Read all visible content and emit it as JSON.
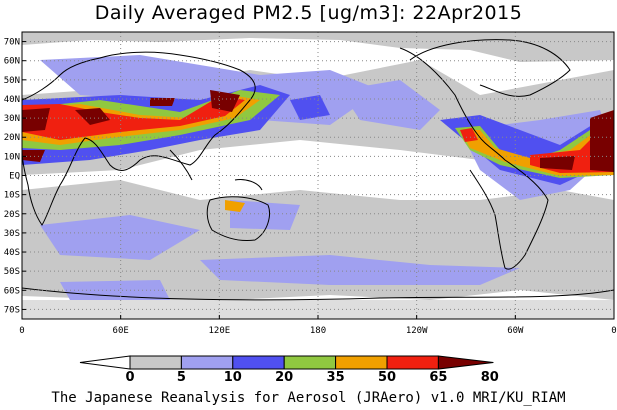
{
  "title": "Daily Averaged PM2.5 [ug/m3]: 22Apr2015",
  "footer": "The Japanese Reanalysis for Aerosol (JRAero) v1.0 MRI/KU_RIAM",
  "map": {
    "lat_labels": [
      "70N",
      "60N",
      "50N",
      "40N",
      "30N",
      "20N",
      "10N",
      "EQ",
      "10S",
      "20S",
      "30S",
      "40S",
      "50S",
      "60S",
      "70S"
    ],
    "lat_values": [
      70,
      60,
      50,
      40,
      30,
      20,
      10,
      0,
      -10,
      -20,
      -30,
      -40,
      -50,
      -60,
      -70
    ],
    "lon_labels": [
      "0",
      "60E",
      "120E",
      "180",
      "120W",
      "60W",
      "0"
    ],
    "lon_values": [
      0,
      60,
      120,
      180,
      240,
      300,
      360
    ],
    "lat_range": [
      -75,
      75
    ],
    "lon_range": [
      0,
      360
    ]
  },
  "colorbar": {
    "levels": [
      "0",
      "5",
      "10",
      "20",
      "35",
      "50",
      "65",
      "80"
    ],
    "colors": [
      "#ffffff",
      "#c8c8c8",
      "#a0a0f0",
      "#5050f0",
      "#90c840",
      "#f0a000",
      "#f02010",
      "#780000"
    ]
  }
}
